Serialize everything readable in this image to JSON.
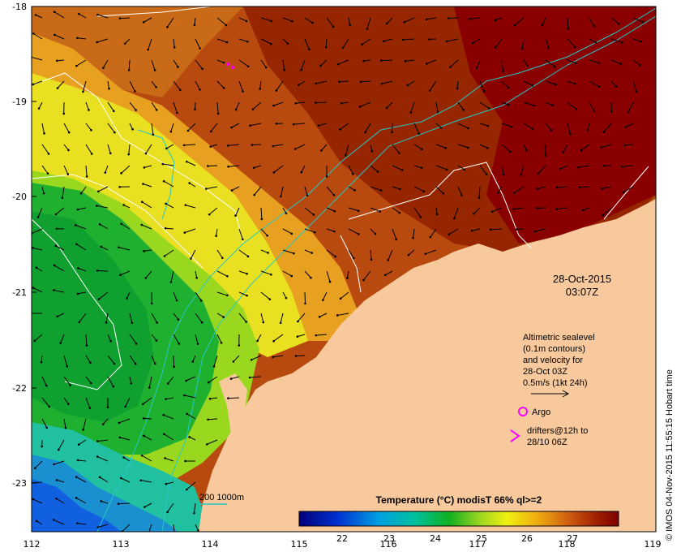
{
  "map": {
    "lat_labels": [
      "-18",
      "-19",
      "-20",
      "-21",
      "-22",
      "-23"
    ],
    "lon_labels": [
      "112",
      "113",
      "114",
      "115",
      "116",
      "117",
      "118",
      "119"
    ],
    "date": "28-Oct-2015",
    "time": "03:07Z",
    "legend_lines": [
      "Altimetric sealevel",
      "(0.1m contours)",
      "and velocity for",
      "28-Oct 03Z",
      "0.5m/s (1kt 24h)"
    ],
    "argo_label": "Argo",
    "drifter_lines": [
      "drifters@12h to",
      "28/10 06Z"
    ],
    "depth_label": "200  1000m",
    "colorbar_title": "Temperature (°C) modisT 66% ql>=2",
    "colorbar_ticks": [
      "22",
      "23",
      "24",
      "25",
      "26",
      "27"
    ],
    "credit": "© IMOS 04-Nov-2015 11:55:15 Hobart time",
    "colors": {
      "land": "#f8c99c",
      "bathy": "#27c7c7",
      "argo": "#ff00ff",
      "contour": "#ffffff"
    }
  }
}
